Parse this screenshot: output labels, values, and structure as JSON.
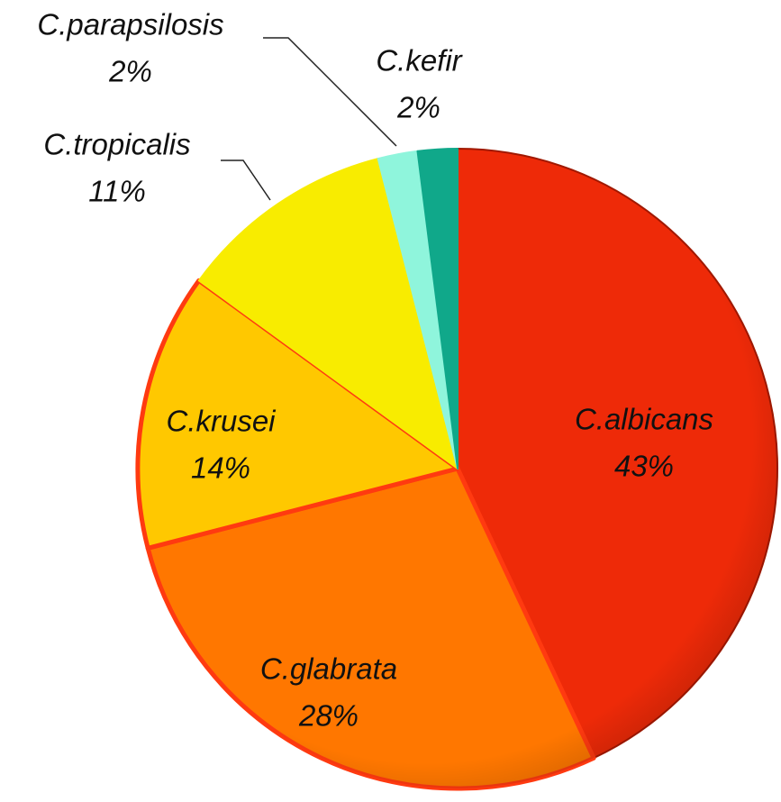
{
  "chart_data": {
    "type": "pie",
    "categories": [
      "C.albicans",
      "C.glabrata",
      "C.krusei",
      "C.tropicalis",
      "C.parapsilosis",
      "C.kefir"
    ],
    "values": [
      43,
      28,
      14,
      11,
      2,
      2
    ],
    "value_labels": [
      "43%",
      "28%",
      "14%",
      "11%",
      "2%",
      "2%"
    ],
    "colors": [
      "#ee2a08",
      "#ff7700",
      "#ffc800",
      "#f8ec00",
      "#8ff5dc",
      "#10a88a"
    ]
  }
}
